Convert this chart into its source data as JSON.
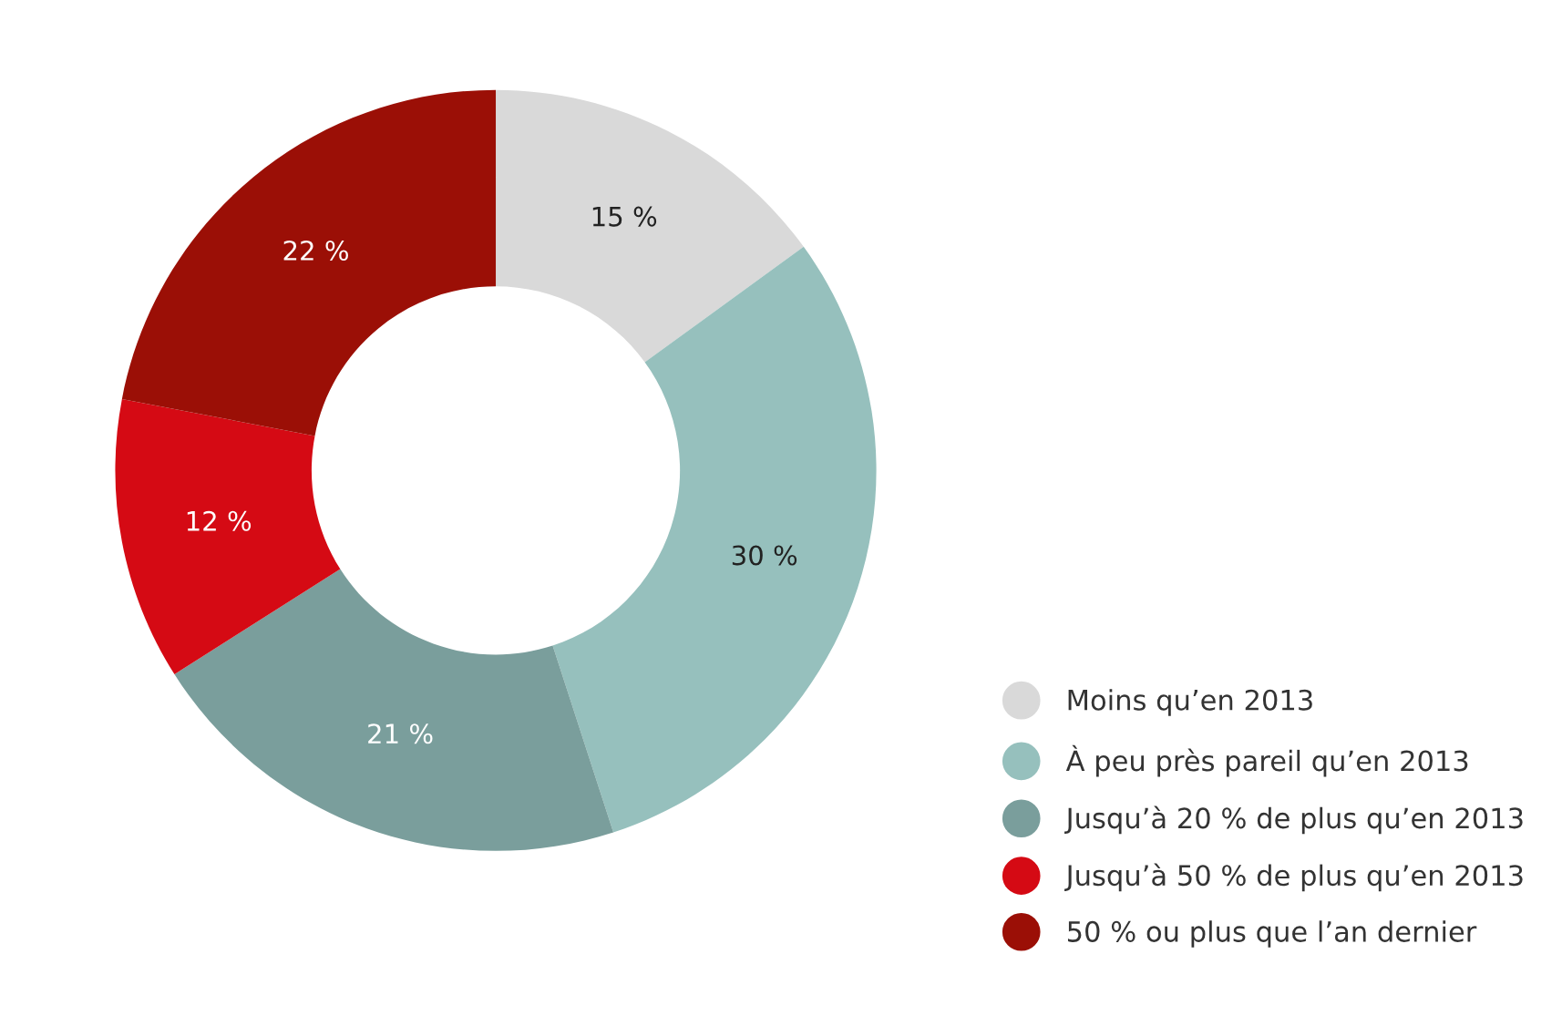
{
  "chart_data": {
    "type": "donut",
    "categories": [
      "Moins qu’en 2013",
      "À peu près pareil qu’en 2013",
      "Jusqu’à 20 % de plus qu’en 2013",
      "Jusqu’à 50 % de plus qu’en 2013",
      "50 % ou plus que l’an dernier"
    ],
    "values": [
      15,
      30,
      21,
      12,
      22
    ],
    "value_labels": [
      "15 %",
      "30 %",
      "21 %",
      "12 %",
      "22 %"
    ],
    "colors": [
      "#d9d9d9",
      "#96c0bd",
      "#7a9e9c",
      "#d50a14",
      "#9b0f06"
    ],
    "legend": "bottom right"
  }
}
